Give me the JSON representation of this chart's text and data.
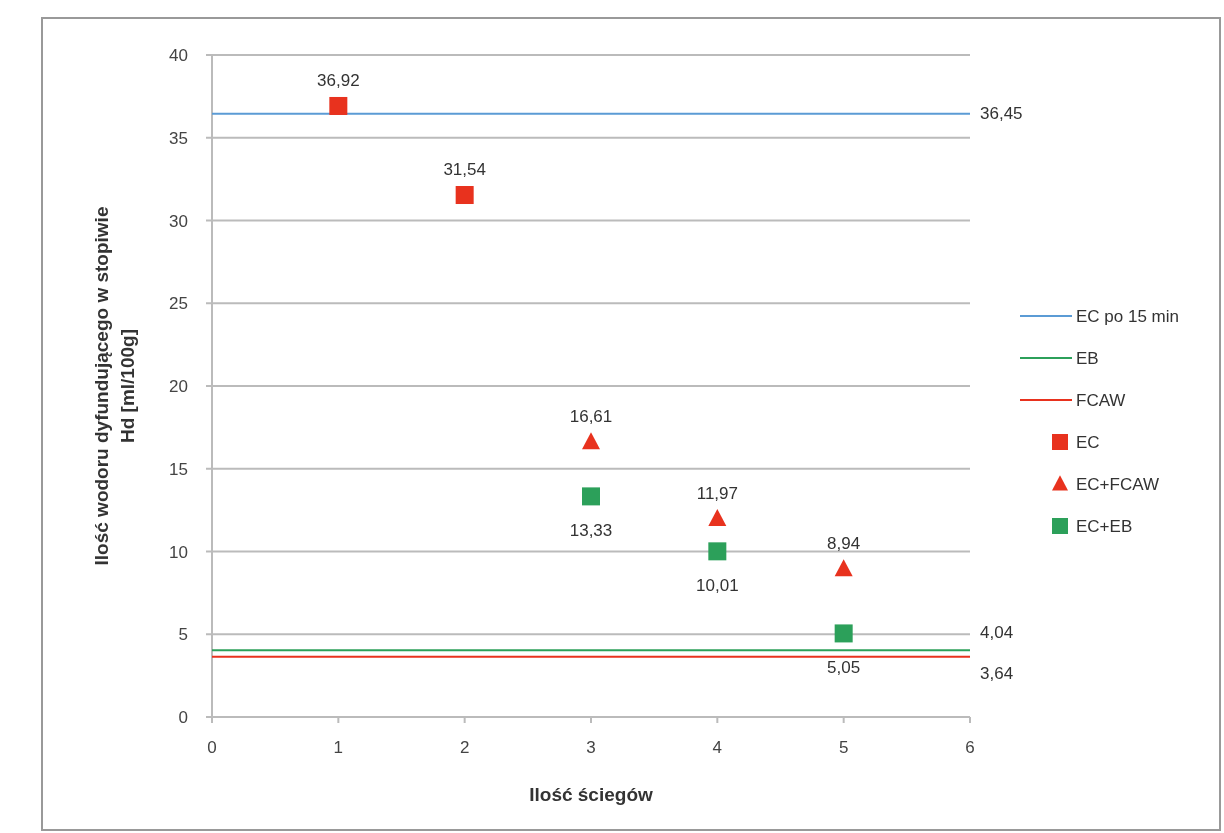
{
  "chart_data": {
    "type": "scatter",
    "xlabel": "Ilość ściegów",
    "ylabel": "Ilość wodoru dyfundującego w stopiwie Hd [ml/100g]",
    "xlim": [
      0,
      6
    ],
    "xticks": [
      0,
      1,
      2,
      3,
      4,
      5,
      6
    ],
    "ylim": [
      0,
      40
    ],
    "yticks": [
      0,
      5,
      10,
      15,
      20,
      25,
      30,
      35,
      40
    ],
    "grid": "y",
    "legend": "right",
    "series": [
      {
        "name": "EC po 15 min",
        "type": "line",
        "color": "#5b9bd5",
        "marker": "none",
        "x": [
          0,
          6
        ],
        "values": [
          36.45,
          36.45
        ],
        "value_labels": [
          null,
          "36,45"
        ]
      },
      {
        "name": "EB",
        "type": "line",
        "color": "#2ca05a",
        "marker": "none",
        "x": [
          0,
          6
        ],
        "values": [
          4.04,
          4.04
        ],
        "value_labels": [
          null,
          "4,04"
        ]
      },
      {
        "name": "FCAW",
        "type": "line",
        "color": "#e8321e",
        "marker": "none",
        "x": [
          0,
          6
        ],
        "values": [
          3.64,
          3.64
        ],
        "value_labels": [
          null,
          "3,64"
        ]
      },
      {
        "name": "EC",
        "color": "#e8321e",
        "marker": "square",
        "x": [
          1,
          2
        ],
        "values": [
          36.92,
          31.54
        ],
        "value_labels": [
          "36,92",
          "31,54"
        ]
      },
      {
        "name": "EC+FCAW",
        "color": "#e8321e",
        "marker": "triangle",
        "x": [
          3,
          4,
          5
        ],
        "values": [
          16.61,
          11.97,
          8.94
        ],
        "value_labels": [
          "16,61",
          "11,97",
          "8,94"
        ]
      },
      {
        "name": "EC+EB",
        "color": "#2ca05a",
        "marker": "square",
        "x": [
          3,
          4,
          5
        ],
        "values": [
          13.33,
          10.01,
          5.05
        ],
        "value_labels": [
          "13,33",
          "10,01",
          "5,05"
        ]
      }
    ]
  }
}
